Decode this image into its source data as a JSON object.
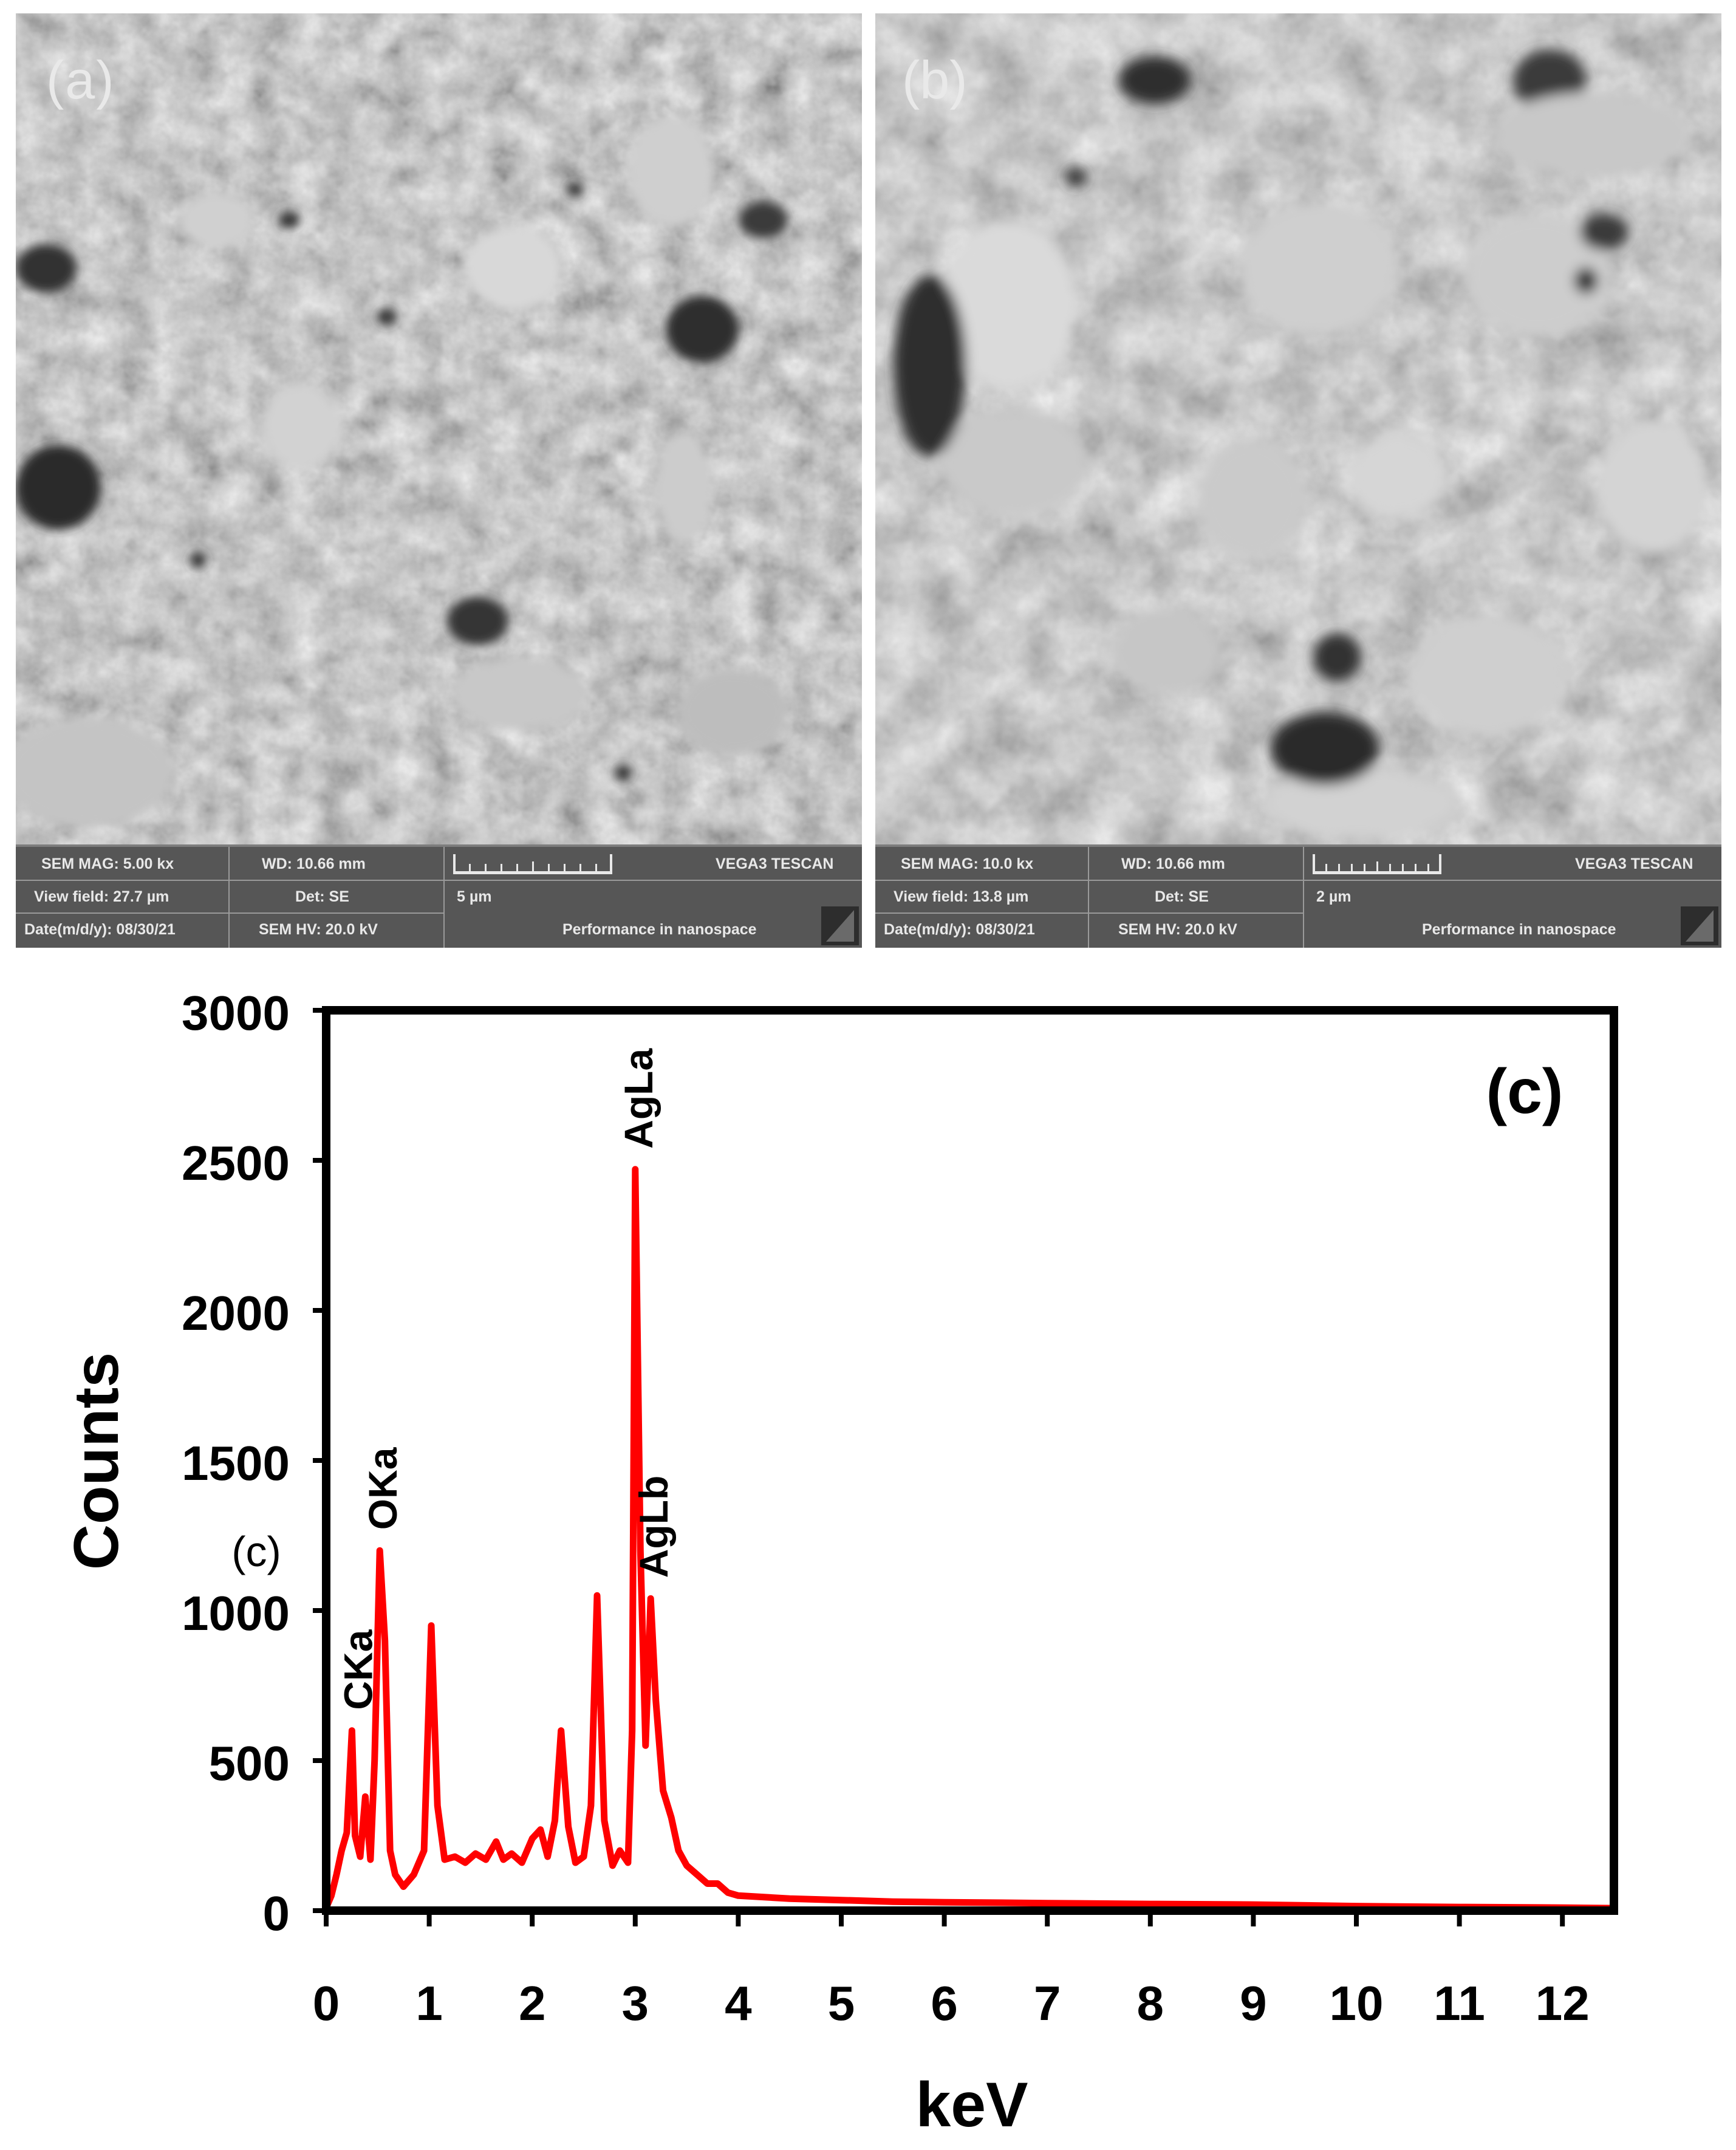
{
  "panels": [
    {
      "label": "(a)",
      "info": {
        "mag": "SEM MAG: 5.00 kx",
        "wd": "WD: 10.66 mm",
        "brand": "VEGA3 TESCAN",
        "view_field": "View field: 27.7 µm",
        "det": "Det: SE",
        "scale": "5 µm",
        "date": "Date(m/d/y): 08/30/21",
        "hv": "SEM HV: 20.0 kV",
        "tagline": "Performance in nanospace"
      }
    },
    {
      "label": "(b)",
      "info": {
        "mag": "SEM MAG: 10.0 kx",
        "wd": "WD: 10.66 mm",
        "brand": "VEGA3 TESCAN",
        "view_field": "View field: 13.8 µm",
        "det": "Det: SE",
        "scale": "2 µm",
        "date": "Date(m/d/y): 08/30/21",
        "hv": "SEM HV: 20.0 kV",
        "tagline": "Performance in nanospace"
      }
    }
  ],
  "chart_data": {
    "type": "line",
    "panel_label": "(c)",
    "side_label": "(c)",
    "xlabel": "keV",
    "ylabel": "Counts",
    "xlim": [
      0,
      12.5
    ],
    "ylim": [
      0,
      3000
    ],
    "xticks": [
      0,
      1,
      2,
      3,
      4,
      5,
      6,
      7,
      8,
      9,
      10,
      11,
      12
    ],
    "yticks": [
      0,
      500,
      1000,
      1500,
      2000,
      2500,
      3000
    ],
    "grid": false,
    "series": [
      {
        "color": "#ff0000",
        "x": [
          0.0,
          0.05,
          0.1,
          0.15,
          0.2,
          0.25,
          0.28,
          0.33,
          0.38,
          0.43,
          0.47,
          0.52,
          0.57,
          0.62,
          0.67,
          0.75,
          0.85,
          0.95,
          1.02,
          1.08,
          1.15,
          1.25,
          1.35,
          1.45,
          1.55,
          1.65,
          1.72,
          1.8,
          1.9,
          2.0,
          2.08,
          2.15,
          2.22,
          2.28,
          2.35,
          2.42,
          2.5,
          2.57,
          2.63,
          2.7,
          2.78,
          2.85,
          2.93,
          2.97,
          3.0,
          3.05,
          3.1,
          3.15,
          3.2,
          3.27,
          3.35,
          3.42,
          3.5,
          3.6,
          3.7,
          3.8,
          3.9,
          4.0,
          4.5,
          5.0,
          5.5,
          6.0,
          7.0,
          8.0,
          9.0,
          10.0,
          11.0,
          12.0,
          12.5
        ],
        "y": [
          10,
          50,
          120,
          200,
          260,
          600,
          250,
          180,
          380,
          170,
          500,
          1200,
          900,
          200,
          120,
          80,
          120,
          200,
          950,
          350,
          170,
          180,
          160,
          190,
          170,
          230,
          170,
          190,
          160,
          240,
          270,
          180,
          300,
          600,
          280,
          160,
          180,
          350,
          1050,
          300,
          150,
          200,
          160,
          600,
          2470,
          1200,
          550,
          1040,
          700,
          400,
          310,
          200,
          150,
          120,
          90,
          90,
          60,
          50,
          40,
          35,
          30,
          28,
          25,
          22,
          20,
          15,
          12,
          10,
          8
        ]
      }
    ],
    "peak_labels": [
      {
        "text": "CKa",
        "x": 0.28,
        "y": 600
      },
      {
        "text": "OKa",
        "x": 0.52,
        "y": 1200
      },
      {
        "text": "AgLa",
        "x": 3.0,
        "y": 2470
      },
      {
        "text": "AgLb",
        "x": 3.15,
        "y": 1040
      }
    ]
  }
}
